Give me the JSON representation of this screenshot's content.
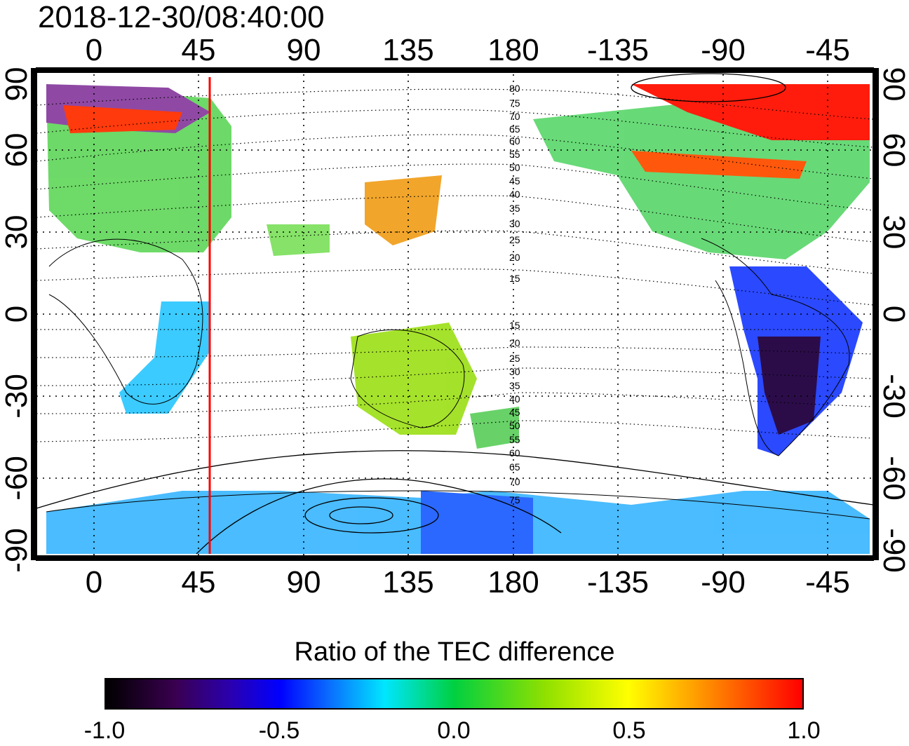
{
  "timestamp": "2018-12-30/08:40:00",
  "map": {
    "top_lon_labels": [
      "0",
      "45",
      "90",
      "135",
      "180",
      "-135",
      "-90",
      "-45"
    ],
    "bottom_lon_labels": [
      "0",
      "45",
      "90",
      "135",
      "180",
      "-135",
      "-90",
      "-45"
    ],
    "left_lat_labels": [
      "90",
      "60",
      "30",
      "0",
      "-30",
      "-60",
      "-90"
    ],
    "right_lat_labels": [
      "90",
      "60",
      "30",
      "0",
      "-30",
      "-60",
      "-90"
    ],
    "contour_labels_north": [
      "80",
      "75",
      "70",
      "65",
      "60",
      "55",
      "50",
      "45",
      "40",
      "35",
      "30",
      "25",
      "20",
      "15"
    ],
    "contour_labels_south": [
      "15",
      "20",
      "25",
      "30",
      "35",
      "40",
      "45",
      "50",
      "55",
      "60",
      "65",
      "70",
      "75"
    ],
    "meridian_line_color": "#ff0000"
  },
  "colorbar": {
    "title": "Ratio of the TEC difference",
    "ticks": [
      "-1.0",
      "-0.5",
      "0.0",
      "0.5",
      "1.0"
    ],
    "colors": [
      "#000000",
      "#3a0050",
      "#0000ff",
      "#00e6ff",
      "#00d040",
      "#ffff00",
      "#ff0000"
    ]
  }
}
